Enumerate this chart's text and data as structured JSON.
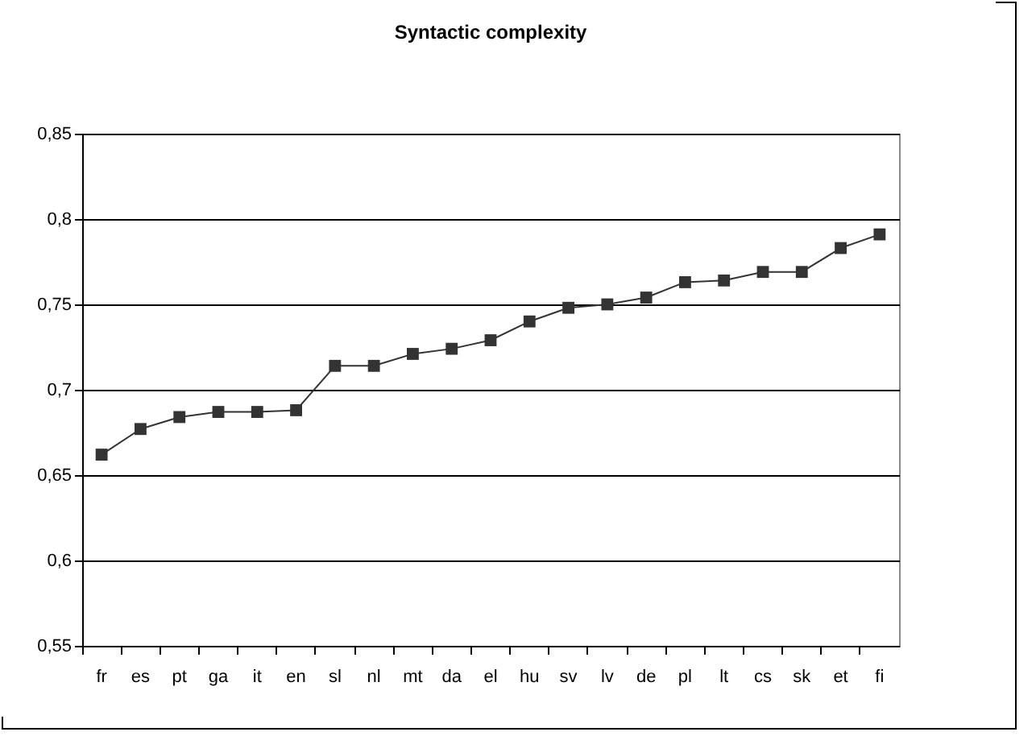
{
  "chart_data": {
    "type": "line",
    "title": "Syntactic complexity",
    "categories": [
      "fr",
      "es",
      "pt",
      "ga",
      "it",
      "en",
      "sl",
      "nl",
      "mt",
      "da",
      "el",
      "hu",
      "sv",
      "lv",
      "de",
      "pl",
      "lt",
      "cs",
      "sk",
      "et",
      "fi"
    ],
    "series": [
      {
        "color": "#333333",
        "values": [
          0.662,
          0.677,
          0.684,
          0.687,
          0.687,
          0.688,
          0.714,
          0.714,
          0.721,
          0.724,
          0.729,
          0.74,
          0.748,
          0.75,
          0.754,
          0.763,
          0.764,
          0.769,
          0.769,
          0.783,
          0.791
        ]
      }
    ],
    "ylim": [
      0.55,
      0.85
    ],
    "yticks": [
      {
        "value": 0.55,
        "label": "0,55"
      },
      {
        "value": 0.6,
        "label": "0,6"
      },
      {
        "value": 0.65,
        "label": "0,65"
      },
      {
        "value": 0.7,
        "label": "0,7"
      },
      {
        "value": 0.75,
        "label": "0,75"
      },
      {
        "value": 0.8,
        "label": "0,8"
      },
      {
        "value": 0.85,
        "label": "0,85"
      }
    ],
    "grid": "y",
    "marker": "square",
    "line_style": "solid",
    "legend": false
  }
}
